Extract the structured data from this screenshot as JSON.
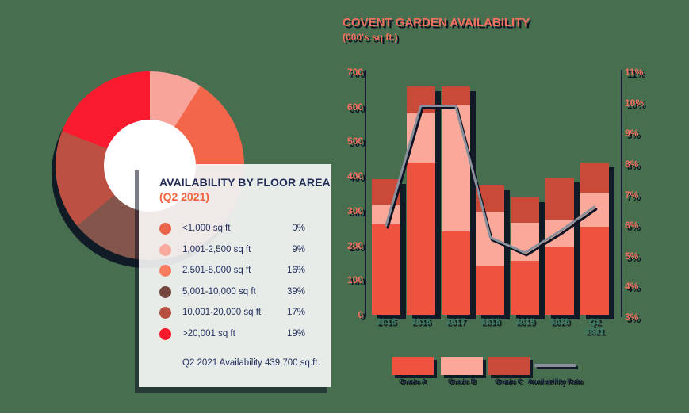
{
  "colors": {
    "background": "#476E4F",
    "coral_text": "#F4705E",
    "navy_text": "#202B56",
    "teal_year_text": "#3C7A68",
    "rate_line": "#8A909B",
    "grade_a": "#EF5340",
    "grade_b": "#F9A89A",
    "grade_c": "#C94A38"
  },
  "chart_data": [
    {
      "type": "pie",
      "title": "AVAILABILITY BY FLOOR AREA",
      "subtitle": "(Q2 2021)",
      "note": "Q2 2021 Availability 439,700 sq.ft.",
      "labels": [
        "<1,000 sq ft",
        "1,001-2,500 sq ft",
        "2,501-5,000 sq ft",
        "5,001-10,000 sq ft",
        "10,001-20,000 sq ft",
        ">20,001 sq ft"
      ],
      "values": [
        0,
        9,
        16,
        39,
        17,
        19
      ],
      "values_display": [
        "0%",
        "9%",
        "16%",
        "39%",
        "17%",
        "19%"
      ],
      "colors": [
        "#E8654A",
        "#F9A99E",
        "#F87C5F",
        "#74463E",
        "#B65141",
        "#FB1A2C"
      ],
      "slice_colors": [
        "#E8654A",
        "#F9A49B",
        "#F4664A",
        "#84564B",
        "#BC5143",
        "#F91A2D"
      ],
      "donut_hole": true,
      "start_angle_deg": 0,
      "direction": "clockwise"
    },
    {
      "type": "bar",
      "subtype": "stacked-with-line",
      "title": "COVENT GARDEN AVAILABILITY",
      "subtitle": "(000's sq ft.)",
      "categories": [
        "2015",
        "2016",
        "2017",
        "2018",
        "2019",
        "2020",
        "Q2 2021"
      ],
      "series": [
        {
          "name": "Grade A",
          "color": "#EF5340",
          "values": [
            260,
            440,
            240,
            140,
            156,
            195,
            255
          ]
        },
        {
          "name": "Grade B",
          "color": "#F9A89A",
          "values": [
            57,
            140,
            365,
            158,
            110,
            80,
            97
          ]
        },
        {
          "name": "Grade C",
          "color": "#C94A38",
          "values": [
            75,
            80,
            55,
            75,
            73,
            120,
            88
          ]
        }
      ],
      "line_series": {
        "name": "Availability Rate",
        "color": "#8A909B",
        "axis": "right",
        "values_pct": [
          6.0,
          9.9,
          9.9,
          5.6,
          5.1,
          5.8,
          6.6
        ]
      },
      "left_axis": {
        "ticks": [
          700,
          600,
          500,
          400,
          300,
          200,
          100,
          0
        ],
        "range": [
          0,
          700
        ]
      },
      "right_axis": {
        "ticks": [
          "11%",
          "10%",
          "9%",
          "8%",
          "7%",
          "6%",
          "5%",
          "4%",
          "3%"
        ],
        "range_pct": [
          3,
          11
        ]
      },
      "legend": {
        "items": [
          {
            "label": "Grade A",
            "color": "#EF5340",
            "kind": "swatch"
          },
          {
            "label": "Grade B",
            "color": "#F9A89A",
            "kind": "swatch"
          },
          {
            "label": "Grade C",
            "color": "#C94A38",
            "kind": "swatch"
          },
          {
            "label": "Availability Rate",
            "color": "#8A909B",
            "kind": "line"
          }
        ]
      }
    }
  ]
}
